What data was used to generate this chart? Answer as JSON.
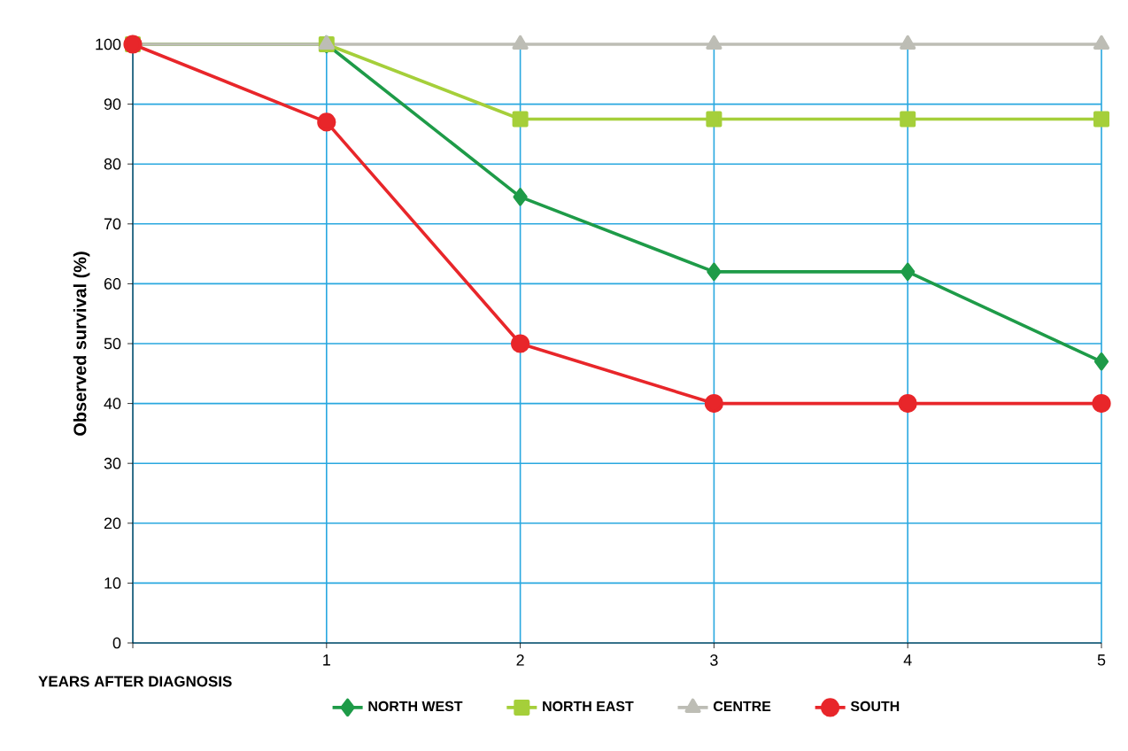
{
  "chart_data": {
    "type": "line",
    "xlabel": "YEARS AFTER DIAGNOSIS",
    "ylabel": "Observed survival (%)",
    "x": [
      0,
      1,
      2,
      3,
      4,
      5
    ],
    "xlim": [
      0,
      5
    ],
    "xticks": [
      {
        "value": 0,
        "label": null
      },
      1,
      2,
      3,
      4,
      5
    ],
    "ylim": [
      0,
      100
    ],
    "yticks": [
      0,
      10,
      20,
      30,
      40,
      50,
      60,
      70,
      80,
      90,
      100
    ],
    "grid": true,
    "legend": "bottom",
    "series": [
      {
        "name": "NORTH WEST",
        "color": "#1e9b48",
        "marker": "diamond",
        "values": [
          100,
          100,
          74.5,
          62,
          62,
          47
        ]
      },
      {
        "name": "NORTH EAST",
        "color": "#a5cf3a",
        "marker": "square",
        "values": [
          100,
          100,
          87.5,
          87.5,
          87.5,
          87.5
        ]
      },
      {
        "name": "CENTRE",
        "color": "#bdbdb5",
        "marker": "triangle",
        "values": [
          100,
          100,
          100,
          100,
          100,
          100
        ]
      },
      {
        "name": "SOUTH",
        "color": "#e8262a",
        "marker": "circle",
        "values": [
          100,
          87,
          50,
          40,
          40,
          40
        ]
      }
    ]
  }
}
